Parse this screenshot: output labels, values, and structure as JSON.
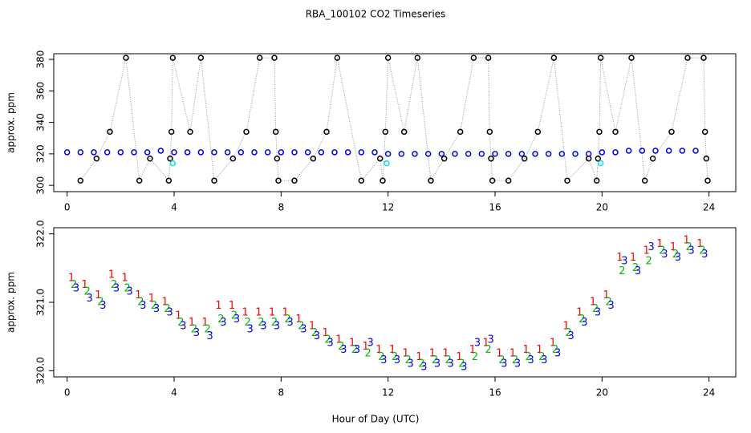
{
  "chart_data": [
    {
      "type": "scatter",
      "title": "RBA_100102  CO2 Timeseries",
      "ylabel": "approx. ppm",
      "xlim": [
        -0.5,
        25
      ],
      "ylim": [
        296,
        383.6
      ],
      "xticks": [
        0,
        4,
        8,
        12,
        16,
        20,
        24
      ],
      "yticks": [
        300,
        320,
        340,
        360,
        380
      ],
      "line_color": "#999999",
      "series": [
        {
          "color": "#000000",
          "x": [
            0.5,
            1.1,
            1.6,
            2.2,
            2.7,
            3.1,
            3.8,
            3.85,
            3.9,
            3.95,
            4.6,
            5.0,
            5.5,
            6.2,
            6.7,
            7.2,
            7.75,
            7.8,
            7.85,
            7.9,
            8.5,
            9.2,
            9.7,
            10.1,
            11.0,
            11.7,
            11.8,
            11.9,
            12.0,
            12.6,
            13.1,
            13.6,
            14.1,
            14.7,
            15.2,
            15.75,
            15.8,
            15.85,
            15.9,
            16.5,
            17.1,
            17.6,
            18.2,
            18.7,
            19.5,
            19.8,
            19.85,
            19.9,
            19.95,
            20.5,
            21.1,
            21.6,
            21.9,
            22.6,
            23.2,
            23.8,
            23.85,
            23.9,
            23.95
          ],
          "values": [
            303,
            317,
            334,
            381,
            303,
            317,
            303,
            317,
            334,
            381,
            334,
            381,
            303,
            317,
            334,
            381,
            381,
            334,
            317,
            303,
            303,
            317,
            334,
            381,
            303,
            317,
            303,
            334,
            381,
            334,
            381,
            303,
            317,
            334,
            381,
            381,
            334,
            317,
            303,
            303,
            317,
            334,
            381,
            303,
            317,
            303,
            317,
            334,
            381,
            334,
            381,
            303,
            317,
            334,
            381,
            381,
            334,
            317,
            303
          ]
        },
        {
          "color": "#0000ff",
          "x": [
            0,
            0.5,
            1,
            1.5,
            2,
            2.5,
            3,
            3.5,
            4,
            4.5,
            5,
            5.5,
            6,
            6.5,
            7,
            7.5,
            8,
            8.5,
            9,
            9.5,
            10,
            10.5,
            11,
            11.5,
            12,
            12.5,
            13,
            13.5,
            14,
            14.5,
            15,
            15.5,
            16,
            16.5,
            17,
            17.5,
            18,
            18.5,
            19,
            19.5,
            20,
            20.5,
            21,
            21.5,
            22,
            22.5,
            23,
            23.5
          ],
          "values": [
            321,
            321,
            321,
            321,
            321,
            321,
            321,
            322,
            321,
            321,
            321,
            321,
            321,
            321,
            321,
            321,
            321,
            321,
            321,
            321,
            321,
            321,
            321,
            321,
            320,
            320,
            320,
            320,
            320,
            320,
            320,
            320,
            320,
            320,
            320,
            320,
            320,
            320,
            320,
            320,
            321,
            321,
            322,
            322,
            322,
            322,
            322,
            322
          ]
        },
        {
          "color": "#00e5ee",
          "x": [
            3.95,
            11.95,
            19.95
          ],
          "values": [
            314,
            314,
            314
          ]
        }
      ]
    },
    {
      "type": "text-scatter",
      "ylabel": "approx. ppm",
      "xlabel": "Hour of Day (UTC)",
      "xlim": [
        -0.5,
        25
      ],
      "ylim": [
        319.91,
        322.09
      ],
      "xticks": [
        0,
        4,
        8,
        12,
        16,
        20,
        24
      ],
      "yticks": [
        {
          "value": 320,
          "label": "320.0"
        },
        {
          "value": 321,
          "label": "321.0"
        },
        {
          "value": 322,
          "label": "322.0"
        }
      ],
      "x": [
        0.25,
        0.75,
        1.25,
        1.75,
        2.25,
        2.75,
        3.25,
        3.75,
        4.25,
        4.75,
        5.25,
        5.75,
        6.25,
        6.75,
        7.25,
        7.75,
        8.25,
        8.75,
        9.25,
        9.75,
        10.25,
        10.75,
        11.25,
        11.75,
        12.25,
        12.75,
        13.25,
        13.75,
        14.25,
        14.75,
        15.25,
        15.75,
        16.25,
        16.75,
        17.25,
        17.75,
        18.25,
        18.75,
        19.25,
        19.75,
        20.25,
        20.75,
        21.25,
        21.75,
        22.25,
        22.75,
        23.25,
        23.75
      ],
      "series": [
        {
          "name": "1",
          "color": "#ff0000",
          "values": [
            321.35,
            321.25,
            321.1,
            321.4,
            321.35,
            321.1,
            321.05,
            321.0,
            320.8,
            320.7,
            320.7,
            320.95,
            320.95,
            320.85,
            320.85,
            320.85,
            320.85,
            320.75,
            320.65,
            320.55,
            320.45,
            320.4,
            320.35,
            320.3,
            320.3,
            320.25,
            320.2,
            320.25,
            320.25,
            320.2,
            320.3,
            320.4,
            320.25,
            320.25,
            320.3,
            320.3,
            320.4,
            320.65,
            320.85,
            321.0,
            321.1,
            321.65,
            321.65,
            321.75,
            321.85,
            321.8,
            321.9,
            321.85
          ]
        },
        {
          "name": "2",
          "color": "#00bb00",
          "values": [
            321.25,
            321.15,
            321.0,
            321.25,
            321.2,
            321.0,
            320.95,
            320.9,
            320.7,
            320.6,
            320.6,
            320.75,
            320.8,
            320.7,
            320.7,
            320.7,
            320.75,
            320.65,
            320.55,
            320.45,
            320.35,
            320.3,
            320.25,
            320.2,
            320.2,
            320.15,
            320.1,
            320.15,
            320.15,
            320.1,
            320.2,
            320.3,
            320.15,
            320.15,
            320.2,
            320.2,
            320.3,
            320.55,
            320.75,
            320.9,
            321.0,
            321.45,
            321.5,
            321.6,
            321.75,
            321.7,
            321.8,
            321.75
          ]
        },
        {
          "name": "3",
          "color": "#0000ff",
          "values": [
            321.2,
            321.05,
            320.95,
            321.2,
            321.15,
            320.95,
            320.9,
            320.85,
            320.65,
            320.55,
            320.5,
            320.7,
            320.75,
            320.6,
            320.65,
            320.65,
            320.7,
            320.6,
            320.5,
            320.4,
            320.3,
            320.3,
            320.4,
            320.15,
            320.15,
            320.1,
            320.05,
            320.1,
            320.1,
            320.05,
            320.4,
            320.45,
            320.1,
            320.1,
            320.15,
            320.15,
            320.25,
            320.5,
            320.7,
            320.85,
            320.95,
            321.6,
            321.45,
            321.8,
            321.7,
            321.65,
            321.75,
            321.7
          ]
        }
      ]
    }
  ]
}
